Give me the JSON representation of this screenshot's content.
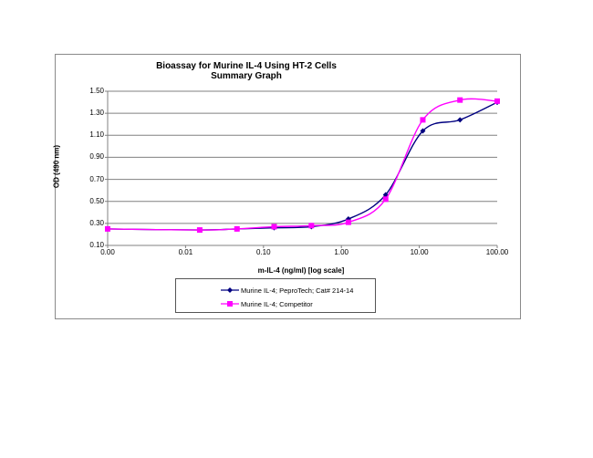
{
  "chart_data": {
    "type": "line",
    "title": "Bioassay for Murine IL-4 Using HT-2 Cells",
    "subtitle": "Summary Graph",
    "xlabel": "m-IL-4 (ng/ml) [log scale]",
    "ylabel": "OD (490 nm)",
    "x_scale": "log",
    "x_tick_labels": [
      "0.00",
      "0.01",
      "0.10",
      "1.00",
      "10.00",
      "100.00"
    ],
    "y_tick_labels": [
      "0.10",
      "0.30",
      "0.50",
      "0.70",
      "0.90",
      "1.10",
      "1.30",
      "1.50"
    ],
    "ylim": [
      0.1,
      1.5
    ],
    "grid": "horizontal",
    "legend_position": "bottom",
    "x": [
      0.001,
      0.0152,
      0.0457,
      0.137,
      0.412,
      1.23,
      3.7,
      11.1,
      33.3,
      100
    ],
    "series": [
      {
        "name": "Murine IL-4; PeproTech; Cat# 214-14",
        "color": "#000080",
        "marker": "diamond",
        "values": [
          0.25,
          0.24,
          0.25,
          0.26,
          0.27,
          0.34,
          0.56,
          1.14,
          1.24,
          1.4
        ]
      },
      {
        "name": "Murine IL-4; Competitor",
        "color": "#FF00FF",
        "marker": "square",
        "values": [
          0.25,
          0.24,
          0.25,
          0.27,
          0.28,
          0.31,
          0.52,
          1.24,
          1.42,
          1.41
        ]
      }
    ]
  }
}
